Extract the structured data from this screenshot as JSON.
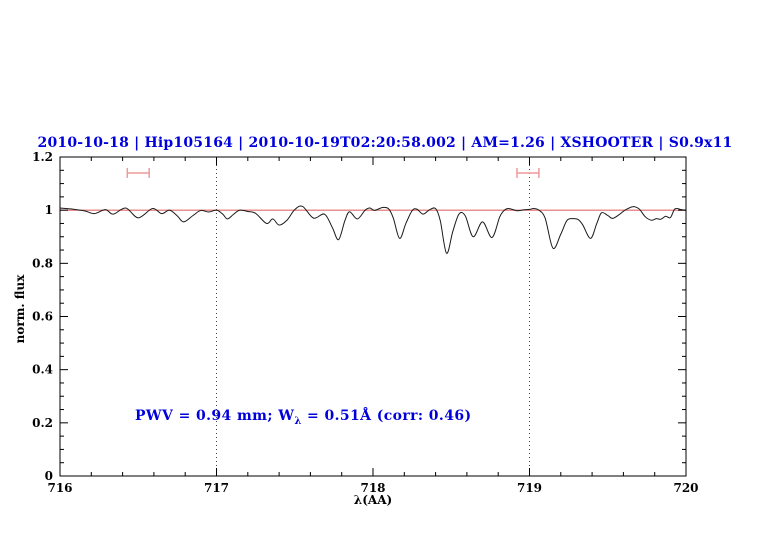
{
  "colors": {
    "accent_blue": "#0000dd",
    "continuum_red": "#e06a6a",
    "marker_pink": "#ef9a9a",
    "spectrum_black": "#1a1a1a",
    "dotted_gray": "#444444",
    "background": "#ffffff"
  },
  "annotation": {
    "part1": "PWV = 0.94 mm; W",
    "subscript": "λ",
    "part2": " = 0.51Å (corr: 0.46)"
  },
  "chart_data": {
    "type": "line",
    "title": "2010-10-18 | Hip105164 | 2010-10-19T02:20:58.002 | AM=1.26 | XSHOOTER | S0.9x11",
    "xlabel": "λ(AA)",
    "ylabel": "norm. flux",
    "xlim": [
      716,
      720
    ],
    "ylim": [
      0,
      1.2
    ],
    "grid": "off",
    "legend": "none",
    "x_ticks": {
      "values": [
        716,
        717,
        718,
        719,
        720
      ],
      "labels": [
        "716",
        "717",
        "718",
        "719",
        "720"
      ],
      "minor_step": 0.2
    },
    "y_ticks": {
      "values": [
        0,
        0.2,
        0.4,
        0.6,
        0.8,
        1,
        1.2
      ],
      "labels": [
        "0",
        "0.2",
        "0.4",
        "0.6",
        "0.8",
        "1",
        "1.2"
      ],
      "minor_step": 0.05
    },
    "dotted_vlines_x": [
      717,
      719
    ],
    "continuum_level": 1.0,
    "resolution_markers": {
      "centers_x": [
        716.5,
        718.99
      ],
      "half_width_x": 0.07,
      "y_flux": 1.14
    },
    "series": [
      {
        "name": "observed-spectrum",
        "x": [
          716.0,
          716.08,
          716.16,
          716.22,
          716.29,
          716.34,
          716.42,
          716.5,
          716.59,
          716.65,
          716.7,
          716.75,
          716.79,
          716.85,
          716.9,
          716.95,
          717.0,
          717.04,
          717.07,
          717.11,
          717.15,
          717.2,
          717.25,
          717.32,
          717.36,
          717.4,
          717.45,
          717.5,
          717.55,
          717.62,
          717.69,
          717.74,
          717.78,
          717.82,
          717.85,
          717.9,
          717.95,
          717.98,
          718.01,
          718.06,
          718.1,
          718.13,
          718.17,
          718.21,
          718.25,
          718.28,
          718.32,
          718.36,
          718.4,
          718.43,
          718.47,
          718.51,
          718.55,
          718.59,
          718.64,
          718.7,
          718.76,
          718.81,
          718.84,
          718.87,
          718.92,
          718.96,
          719.0,
          719.03,
          719.06,
          719.1,
          719.15,
          719.2,
          719.24,
          719.28,
          719.31,
          719.34,
          719.39,
          719.43,
          719.46,
          719.5,
          719.53,
          719.57,
          719.61,
          719.66,
          719.7,
          719.74,
          719.78,
          719.81,
          719.84,
          719.87,
          719.9,
          719.93,
          719.97,
          720.0
        ],
        "y": [
          1.008,
          1.004,
          0.997,
          0.987,
          1.002,
          0.985,
          1.008,
          0.971,
          1.006,
          0.987,
          1.0,
          0.978,
          0.956,
          0.98,
          0.999,
          0.993,
          1.0,
          0.985,
          0.967,
          0.985,
          1.0,
          0.995,
          0.988,
          0.95,
          0.967,
          0.944,
          0.962,
          1.002,
          1.014,
          0.97,
          0.985,
          0.935,
          0.889,
          0.96,
          0.994,
          0.967,
          1.0,
          1.008,
          0.999,
          1.01,
          1.005,
          0.97,
          0.894,
          0.95,
          0.998,
          1.004,
          0.985,
          1.001,
          1.006,
          0.96,
          0.838,
          0.92,
          0.986,
          0.978,
          0.9,
          0.956,
          0.897,
          0.975,
          1.0,
          1.006,
          0.998,
          1.001,
          1.003,
          1.006,
          1.0,
          0.97,
          0.857,
          0.91,
          0.962,
          0.968,
          0.965,
          0.945,
          0.894,
          0.95,
          0.99,
          0.98,
          0.969,
          0.982,
          1.0,
          1.013,
          1.005,
          0.975,
          0.962,
          0.968,
          0.966,
          0.977,
          0.972,
          1.005,
          1.002,
          1.0
        ]
      }
    ]
  }
}
